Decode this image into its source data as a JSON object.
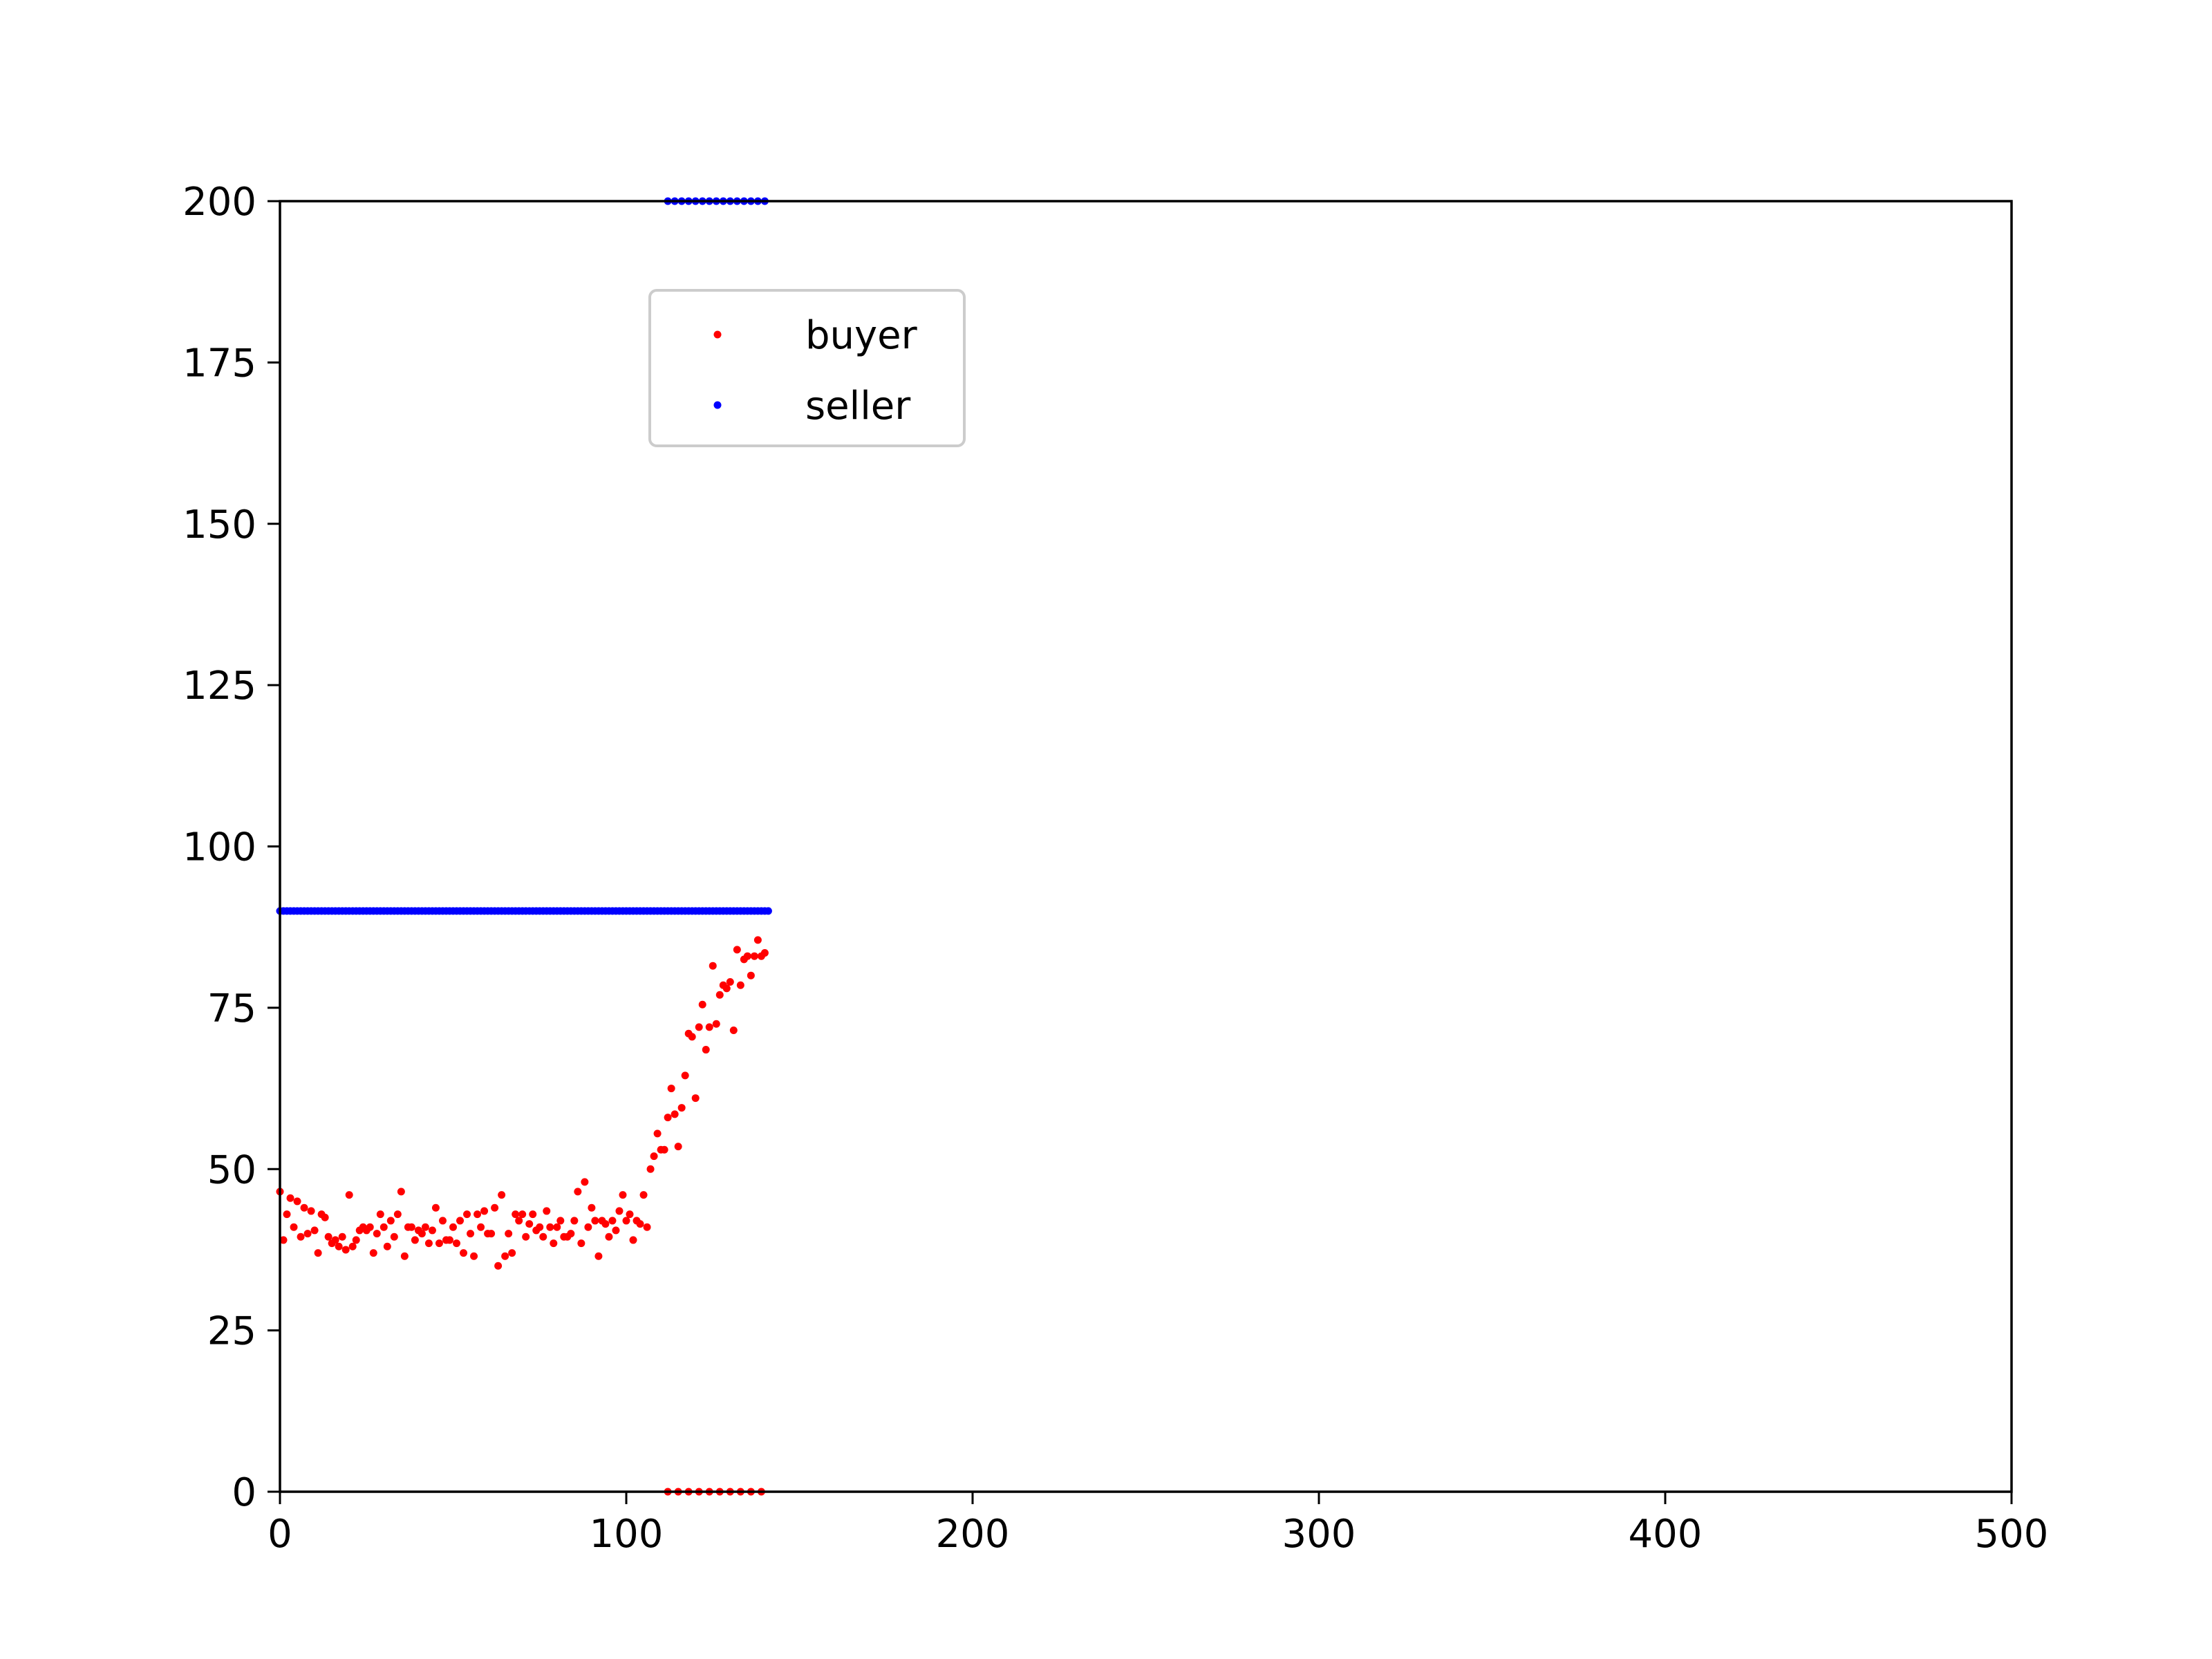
{
  "chart_data": {
    "type": "scatter",
    "title": "",
    "xlabel": "",
    "ylabel": "",
    "xlim": [
      0,
      500
    ],
    "ylim": [
      0,
      200
    ],
    "xticks": [
      0,
      100,
      200,
      300,
      400,
      500
    ],
    "yticks": [
      0,
      25,
      50,
      75,
      100,
      125,
      150,
      175,
      200
    ],
    "grid": false,
    "legend_position": "upper-left (inside plot, near top)",
    "series": [
      {
        "name": "buyer",
        "color": "#ff0000",
        "points": [
          [
            0,
            46.5
          ],
          [
            1,
            39
          ],
          [
            2,
            43
          ],
          [
            3,
            45.5
          ],
          [
            4,
            41
          ],
          [
            5,
            45
          ],
          [
            6,
            39.5
          ],
          [
            7,
            44
          ],
          [
            8,
            40
          ],
          [
            9,
            43.5
          ],
          [
            10,
            40.5
          ],
          [
            11,
            37
          ],
          [
            12,
            43
          ],
          [
            13,
            42.5
          ],
          [
            14,
            39.5
          ],
          [
            15,
            38.5
          ],
          [
            16,
            39
          ],
          [
            17,
            38
          ],
          [
            18,
            39.5
          ],
          [
            19,
            37.5
          ],
          [
            20,
            46
          ],
          [
            21,
            38
          ],
          [
            22,
            39
          ],
          [
            23,
            40.5
          ],
          [
            24,
            41
          ],
          [
            25,
            40.5
          ],
          [
            26,
            41
          ],
          [
            27,
            37
          ],
          [
            28,
            40
          ],
          [
            29,
            43
          ],
          [
            30,
            41
          ],
          [
            31,
            38
          ],
          [
            32,
            42
          ],
          [
            33,
            39.5
          ],
          [
            34,
            43
          ],
          [
            35,
            46.5
          ],
          [
            36,
            36.5
          ],
          [
            37,
            41
          ],
          [
            38,
            41
          ],
          [
            39,
            39
          ],
          [
            40,
            40.5
          ],
          [
            41,
            40
          ],
          [
            42,
            41
          ],
          [
            43,
            38.5
          ],
          [
            44,
            40.5
          ],
          [
            45,
            44
          ],
          [
            46,
            38.5
          ],
          [
            47,
            42
          ],
          [
            48,
            39
          ],
          [
            49,
            39
          ],
          [
            50,
            41
          ],
          [
            51,
            38.5
          ],
          [
            52,
            42
          ],
          [
            53,
            37
          ],
          [
            54,
            43
          ],
          [
            55,
            40
          ],
          [
            56,
            36.5
          ],
          [
            57,
            43
          ],
          [
            58,
            41
          ],
          [
            59,
            43.5
          ],
          [
            60,
            40
          ],
          [
            61,
            40
          ],
          [
            62,
            44
          ],
          [
            63,
            35
          ],
          [
            64,
            46
          ],
          [
            65,
            36.5
          ],
          [
            66,
            40
          ],
          [
            67,
            37
          ],
          [
            68,
            43
          ],
          [
            69,
            42
          ],
          [
            70,
            43
          ],
          [
            71,
            39.5
          ],
          [
            72,
            41.5
          ],
          [
            73,
            43
          ],
          [
            74,
            40.5
          ],
          [
            75,
            41
          ],
          [
            76,
            39.5
          ],
          [
            77,
            43.5
          ],
          [
            78,
            41
          ],
          [
            79,
            38.5
          ],
          [
            80,
            41
          ],
          [
            81,
            42
          ],
          [
            82,
            39.5
          ],
          [
            83,
            39.5
          ],
          [
            84,
            40
          ],
          [
            85,
            42
          ],
          [
            86,
            46.5
          ],
          [
            87,
            38.5
          ],
          [
            88,
            48
          ],
          [
            89,
            41
          ],
          [
            90,
            44
          ],
          [
            91,
            42
          ],
          [
            92,
            36.5
          ],
          [
            93,
            42
          ],
          [
            94,
            41.5
          ],
          [
            95,
            39.5
          ],
          [
            96,
            42
          ],
          [
            97,
            40.5
          ],
          [
            98,
            43.5
          ],
          [
            99,
            46
          ],
          [
            100,
            42
          ],
          [
            101,
            43
          ],
          [
            102,
            39
          ],
          [
            103,
            42
          ],
          [
            104,
            41.5
          ],
          [
            105,
            46
          ],
          [
            106,
            41
          ],
          [
            107,
            50
          ],
          [
            108,
            52
          ],
          [
            109,
            55.5
          ],
          [
            110,
            53
          ],
          [
            111,
            53
          ],
          [
            112,
            58
          ],
          [
            113,
            62.5
          ],
          [
            114,
            58.5
          ],
          [
            115,
            53.5
          ],
          [
            116,
            59.5
          ],
          [
            117,
            64.5
          ],
          [
            118,
            71
          ],
          [
            119,
            70.5
          ],
          [
            120,
            61
          ],
          [
            121,
            72
          ],
          [
            122,
            75.5
          ],
          [
            123,
            68.5
          ],
          [
            124,
            72
          ],
          [
            125,
            81.5
          ],
          [
            126,
            72.5
          ],
          [
            127,
            77
          ],
          [
            128,
            78.5
          ],
          [
            129,
            78
          ],
          [
            130,
            79
          ],
          [
            131,
            71.5
          ],
          [
            132,
            84
          ],
          [
            133,
            78.5
          ],
          [
            134,
            82.5
          ],
          [
            135,
            83
          ],
          [
            136,
            80
          ],
          [
            137,
            83
          ],
          [
            138,
            85.5
          ],
          [
            139,
            83
          ],
          [
            140,
            83.5
          ],
          [
            112,
            0
          ],
          [
            115,
            0
          ],
          [
            118,
            0
          ],
          [
            121,
            0
          ],
          [
            124,
            0
          ],
          [
            127,
            0
          ],
          [
            130,
            0
          ],
          [
            133,
            0
          ],
          [
            136,
            0
          ],
          [
            139,
            0
          ]
        ]
      },
      {
        "name": "seller",
        "color": "#0000ff",
        "line_y": 90,
        "line_x_range": [
          0,
          141
        ],
        "top_y": 200,
        "top_x_points": [
          112,
          114,
          116,
          118,
          120,
          122,
          124,
          126,
          128,
          130,
          132,
          134,
          136,
          138,
          140
        ]
      }
    ]
  }
}
